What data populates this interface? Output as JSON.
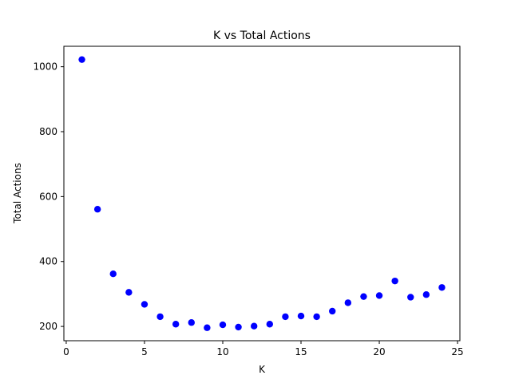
{
  "chart_data": {
    "type": "scatter",
    "title": "K vs Total Actions",
    "xlabel": "K",
    "ylabel": "Total Actions",
    "xlim": [
      -0.15,
      25.15
    ],
    "ylim": [
      156,
      1063
    ],
    "xticks": [
      0,
      5,
      10,
      15,
      20,
      25
    ],
    "yticks": [
      200,
      400,
      600,
      800,
      1000
    ],
    "grid": false,
    "marker_color": "#0000ff",
    "series": [
      {
        "x": [
          1,
          2,
          3,
          4,
          5,
          6,
          7,
          8,
          9,
          10,
          11,
          12,
          13,
          14,
          15,
          16,
          17,
          18,
          19,
          20,
          21,
          22,
          23,
          24
        ],
        "y": [
          1022,
          561,
          362,
          305,
          268,
          230,
          207,
          212,
          196,
          205,
          198,
          201,
          207,
          230,
          232,
          230,
          247,
          273,
          292,
          295,
          340,
          290,
          298,
          320
        ]
      }
    ]
  }
}
